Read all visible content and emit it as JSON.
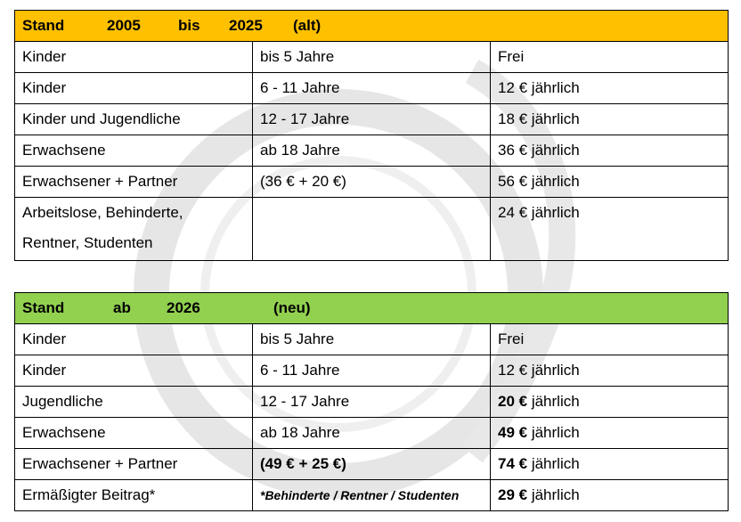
{
  "watermark_icon": "club-crest-watermark",
  "colors": {
    "old_header": "#ffc000",
    "new_header": "#92d050"
  },
  "old_table": {
    "header": [
      "Stand",
      "2005",
      "bis",
      "2025",
      "(alt)"
    ],
    "rows": [
      {
        "group": "Kinder",
        "age": "bis 5 Jahre",
        "price_bold": "",
        "price": "Frei"
      },
      {
        "group": "Kinder",
        "age": "6 - 11 Jahre",
        "price_bold": "",
        "price": "12 € jährlich"
      },
      {
        "group": "Kinder und Jugendliche",
        "age": "12 - 17 Jahre",
        "price_bold": "",
        "price": "18 € jährlich"
      },
      {
        "group": "Erwachsene",
        "age": "ab 18 Jahre",
        "price_bold": "",
        "price": "36 € jährlich"
      },
      {
        "group": "Erwachsener + Partner",
        "age": "(36 € + 20 €)",
        "price_bold": "",
        "price": "56 € jährlich"
      },
      {
        "group": "Arbeitslose, Behinderte,",
        "group2": "Rentner, Studenten",
        "age": "",
        "price_bold": "",
        "price": "24 € jährlich"
      }
    ]
  },
  "new_table": {
    "header": [
      "Stand",
      "ab",
      "2026",
      "(neu)"
    ],
    "rows": [
      {
        "group": "Kinder",
        "age": "bis 5 Jahre",
        "price_bold": "",
        "price": "Frei"
      },
      {
        "group": "Kinder",
        "age": "6 - 11 Jahre",
        "price_bold": "",
        "price": "12 € jährlich"
      },
      {
        "group": "Jugendliche",
        "age": "12 - 17 Jahre",
        "price_bold": "20 €",
        "price": " jährlich"
      },
      {
        "group": "Erwachsene",
        "age": "ab 18 Jahre",
        "price_bold": "49 €",
        "price": " jährlich"
      },
      {
        "group": "Erwachsener + Partner",
        "age_bold": "(49 € + 25 €)",
        "price_bold": "74 €",
        "price": " jährlich"
      },
      {
        "group": "Ermäßigter Beitrag*",
        "age_note": "*Behinderte / Rentner / Studenten",
        "price_bold": "29 €",
        "price": " jährlich"
      }
    ]
  }
}
